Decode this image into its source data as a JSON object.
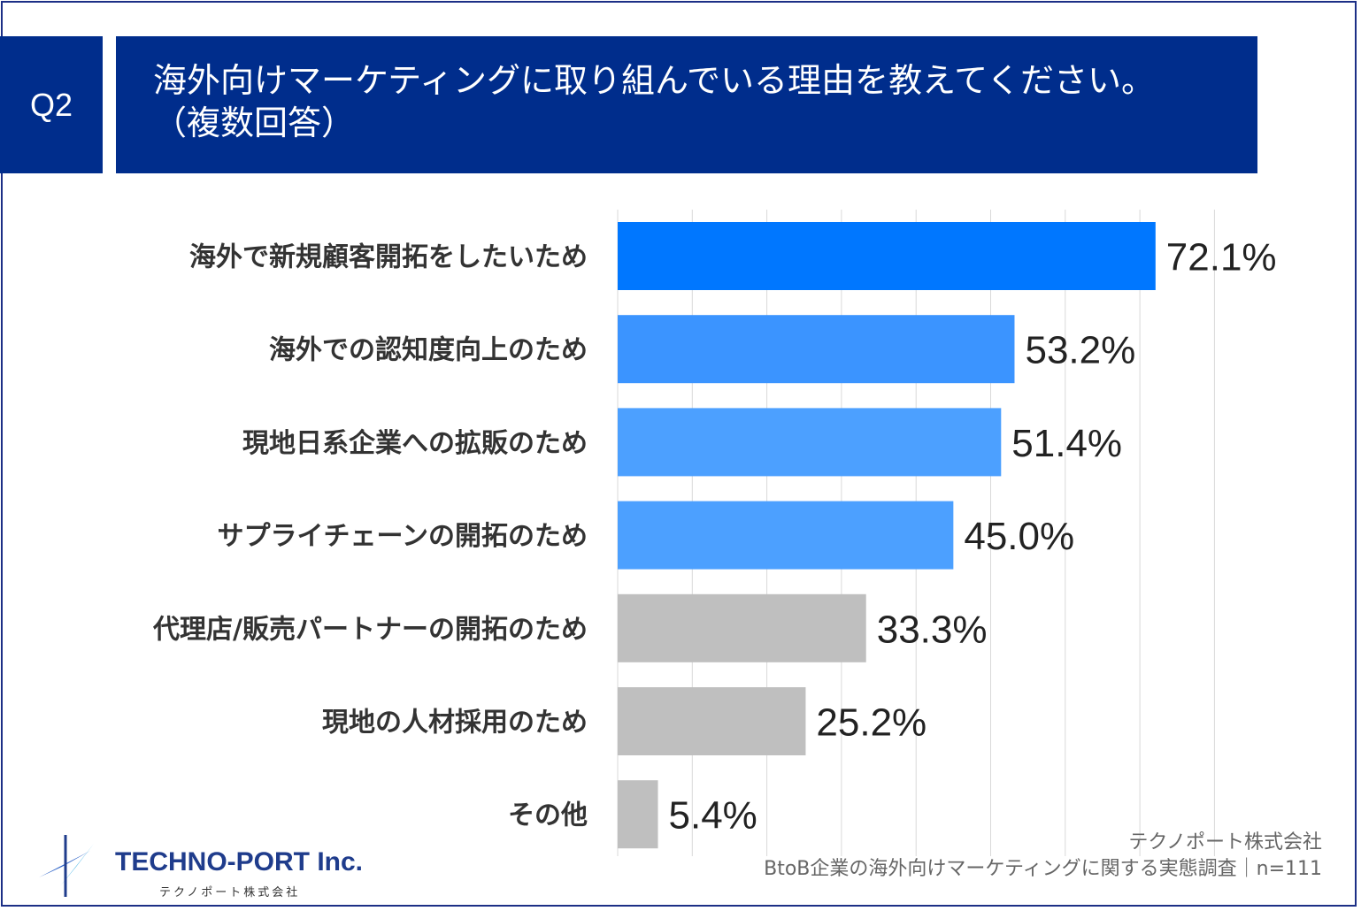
{
  "header": {
    "badge": "Q2",
    "question_line1": "海外向けマーケティングに取り組んでいる理由を教えてください。",
    "question_line2": "（複数回答）"
  },
  "chart_data": {
    "type": "bar",
    "orientation": "horizontal",
    "categories": [
      "海外で新規顧客開拓をしたいため",
      "海外での認知度向上のため",
      "現地日系企業への拡販のため",
      "サプライチェーンの開拓のため",
      "代理店/販売パートナーの開拓のため",
      "現地の人材採用のため",
      "その他"
    ],
    "values": [
      72.1,
      53.2,
      51.4,
      45.0,
      33.3,
      25.2,
      5.4
    ],
    "value_labels": [
      "72.1%",
      "53.2%",
      "51.4%",
      "45.0%",
      "33.3%",
      "25.2%",
      "5.4%"
    ],
    "colors": [
      "#0077ff",
      "#3b94ff",
      "#4ca0ff",
      "#4ca0ff",
      "#bfbfbf",
      "#bfbfbf",
      "#bfbfbf"
    ],
    "xlim": [
      0,
      80
    ],
    "grid": true,
    "unit": "%"
  },
  "logo": {
    "name": "TECHNO-PORT Inc.",
    "sub": "テクノポート株式会社"
  },
  "source": {
    "line1": "テクノポート株式会社",
    "line2": "BtoB企業の海外向けマーケティングに関する実態調査｜n=111"
  }
}
